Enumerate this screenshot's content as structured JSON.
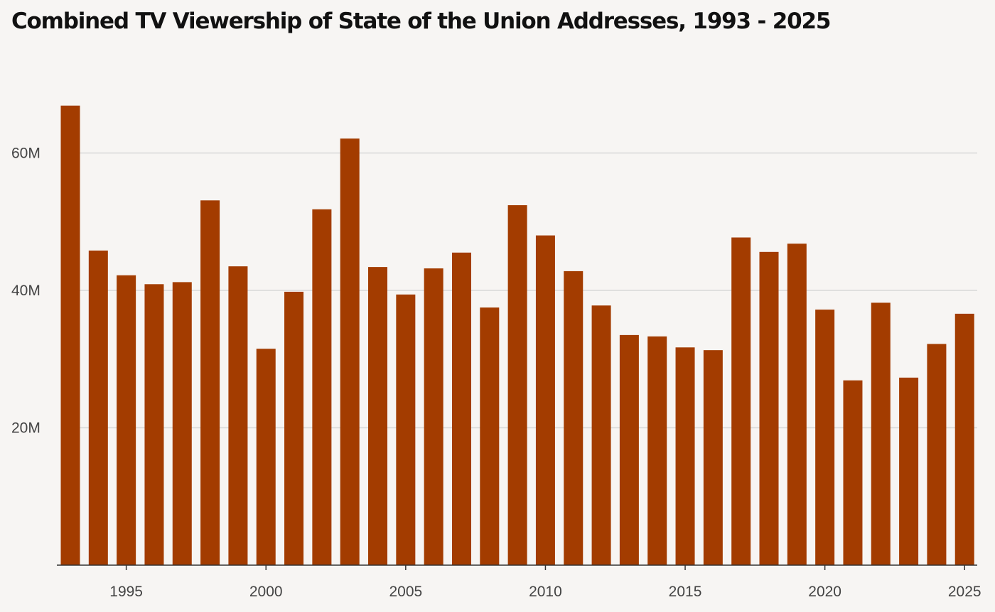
{
  "colors": {
    "bar": "#a33c00",
    "grid": "#d8d8d8",
    "axis": "#333333",
    "background": "#f7f5f3"
  },
  "chart_data": {
    "type": "bar",
    "title": "Combined TV Viewership of State of the Union Addresses, 1993 - 2025",
    "xlabel": "",
    "ylabel": "",
    "categories": [
      1993,
      1994,
      1995,
      1996,
      1997,
      1998,
      1999,
      2000,
      2001,
      2002,
      2003,
      2004,
      2005,
      2006,
      2007,
      2008,
      2009,
      2010,
      2011,
      2012,
      2013,
      2014,
      2015,
      2016,
      2017,
      2018,
      2019,
      2020,
      2021,
      2022,
      2023,
      2024,
      2025
    ],
    "values": [
      66.9,
      45.8,
      42.2,
      40.9,
      41.2,
      53.1,
      43.5,
      31.5,
      39.8,
      51.8,
      62.1,
      43.4,
      39.4,
      43.2,
      45.5,
      37.5,
      52.4,
      48.0,
      42.8,
      37.8,
      33.5,
      33.3,
      31.7,
      31.3,
      47.7,
      45.6,
      46.8,
      37.2,
      26.9,
      38.2,
      27.3,
      32.2,
      36.6
    ],
    "units": "M",
    "xlim": [
      1993,
      2025
    ],
    "ylim": [
      0,
      70
    ],
    "yticks": [
      20,
      40,
      60
    ],
    "ytick_labels": [
      "20M",
      "40M",
      "60M"
    ],
    "xticks": [
      1995,
      2000,
      2005,
      2010,
      2015,
      2020,
      2025
    ],
    "xtick_labels": [
      "1995",
      "2000",
      "2005",
      "2010",
      "2015",
      "2020",
      "2025"
    ],
    "grid": true,
    "legend": "none"
  }
}
